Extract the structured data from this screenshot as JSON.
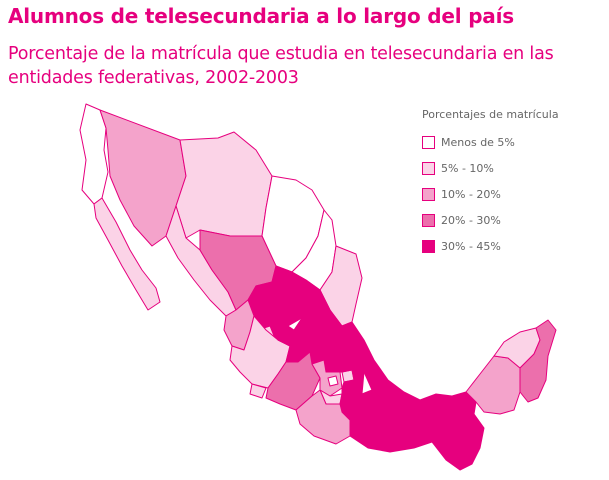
{
  "title": "Alumnos de telesecundaria a lo largo del país",
  "subtitle": "Porcentaje de la matrícula que estudia en telesecundaria en las entidades federativas, 2002-2003",
  "legend": {
    "title": "Porcentajes de matrícula",
    "items": [
      {
        "label": "Menos de 5%",
        "color": "#ffffff"
      },
      {
        "label": "5% - 10%",
        "color": "#fbd3e7"
      },
      {
        "label": "10% - 20%",
        "color": "#f4a3cb"
      },
      {
        "label": "20% - 30%",
        "color": "#ec6fac"
      },
      {
        "label": "30% - 45%",
        "color": "#e6007e"
      }
    ]
  },
  "map": {
    "color_classes": {
      "c0": "#ffffff",
      "c1": "#fbd3e7",
      "c2": "#f4a3cb",
      "c3": "#ec6fac",
      "c4": "#e6007e"
    }
  }
}
